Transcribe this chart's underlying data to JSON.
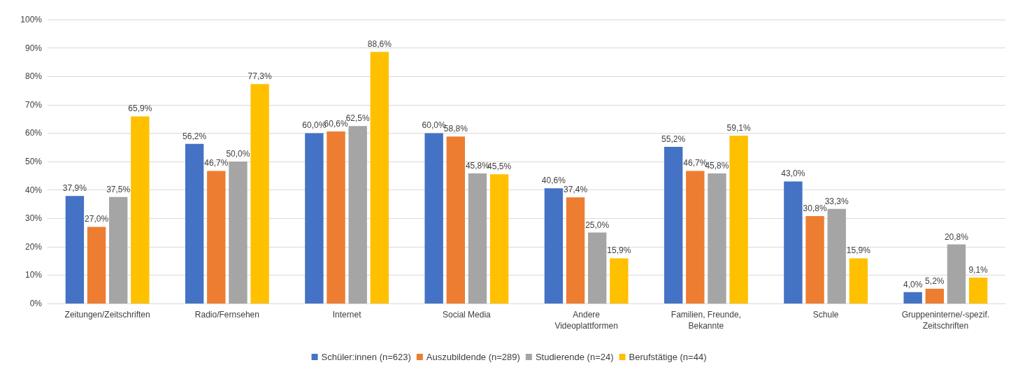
{
  "chart_data": {
    "type": "bar",
    "categories": [
      "Zeitungen/Zeitschriften",
      "Radio/Fernsehen",
      "Internet",
      "Social Media",
      "Andere\nVideoplattformen",
      "Familien, Freunde,\nBekannte",
      "Schule",
      "Gruppeninterne/-spezif.\nZeitschriften"
    ],
    "series": [
      {
        "name": "Schüler:innen (n=623)",
        "color": "#4472c4",
        "values": [
          37.9,
          56.2,
          60.0,
          60.0,
          40.6,
          55.2,
          43.0,
          4.0
        ],
        "value_labels": [
          "37,9%",
          "56,2%",
          "60,0%",
          "60,0%",
          "40,6%",
          "55,2%",
          "43,0%",
          "4,0%"
        ]
      },
      {
        "name": "Auszubildende (n=289)",
        "color": "#ed7d31",
        "values": [
          27.0,
          46.7,
          60.6,
          58.8,
          37.4,
          46.7,
          30.8,
          5.2
        ],
        "value_labels": [
          "27,0%",
          "46,7%",
          "60,6%",
          "58,8%",
          "37,4%",
          "46,7%",
          "30,8%",
          "5,2%"
        ]
      },
      {
        "name": "Studierende (n=24)",
        "color": "#a5a5a5",
        "values": [
          37.5,
          50.0,
          62.5,
          45.8,
          25.0,
          45.8,
          33.3,
          20.8
        ],
        "value_labels": [
          "37,5%",
          "50,0%",
          "62,5%",
          "45,8%",
          "25,0%",
          "45,8%",
          "33,3%",
          "20,8%"
        ]
      },
      {
        "name": "Berufstätige (n=44)",
        "color": "#ffc000",
        "values": [
          65.9,
          77.3,
          88.6,
          45.5,
          15.9,
          59.1,
          15.9,
          9.1
        ],
        "value_labels": [
          "65,9%",
          "77,3%",
          "88,6%",
          "45,5%",
          "15,9%",
          "59,1%",
          "15,9%",
          "9,1%"
        ]
      }
    ],
    "ylim": [
      0,
      100
    ],
    "yticks": [
      {
        "value": 0,
        "label": "0%"
      },
      {
        "value": 10,
        "label": "10%"
      },
      {
        "value": 20,
        "label": "20%"
      },
      {
        "value": 30,
        "label": "30%"
      },
      {
        "value": 40,
        "label": "40%"
      },
      {
        "value": 50,
        "label": "50%"
      },
      {
        "value": 60,
        "label": "60%"
      },
      {
        "value": 70,
        "label": "70%"
      },
      {
        "value": 80,
        "label": "80%"
      },
      {
        "value": 90,
        "label": "90%"
      },
      {
        "value": 100,
        "label": "100%"
      }
    ],
    "grid": "y",
    "legend": "bottom"
  }
}
